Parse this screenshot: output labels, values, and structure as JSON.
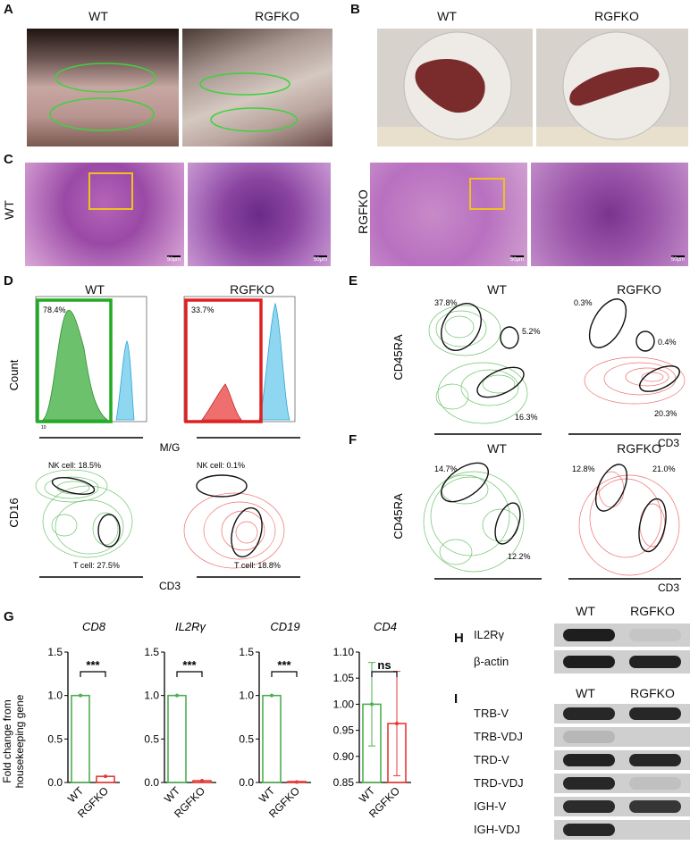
{
  "panel_labels": {
    "a": "A",
    "b": "B",
    "c": "C",
    "d": "D",
    "e": "E",
    "f": "F",
    "g": "G",
    "h": "H",
    "i": "I"
  },
  "groups": {
    "wt": "WT",
    "ko": "RGFKO"
  },
  "scale_bar": "50μm",
  "panel_d": {
    "hist_wt_pct": "78.4%",
    "hist_ko_pct": "33.7%",
    "count_label": "Count",
    "mg_label": "M/G",
    "cd16_label": "CD16",
    "cd3_label": "CD3",
    "wt_nk": "NK cell: 18.5%",
    "wt_t": "T cell: 27.5%",
    "ko_nk": "NK cell: 0.1%",
    "ko_t": "T cell: 18.8%",
    "colors": {
      "wt": "#4caf50",
      "ko": "#e53935",
      "other": "#29b6f6"
    }
  },
  "panel_e": {
    "ylabel": "CD45RA",
    "xlabel": "CD3",
    "wt": [
      "37.8%",
      "5.2%",
      "16.3%"
    ],
    "ko": [
      "0.3%",
      "0.4%",
      "20.3%"
    ]
  },
  "panel_f": {
    "ylabel": "CD45RA",
    "xlabel": "CD3",
    "wt": [
      "14.7%",
      "12.2%"
    ],
    "ko": [
      "12.8%",
      "21.0%"
    ]
  },
  "panel_g": {
    "ylabel_line1": "Fold change from",
    "ylabel_line2": "housekeeping gene"
  },
  "chart_data": [
    {
      "type": "bar",
      "title": "CD8",
      "categories": [
        "WT",
        "RGFKO"
      ],
      "values": [
        1.0,
        0.07
      ],
      "ylim": [
        0,
        1.5
      ],
      "yticks": [
        "0.0",
        "0.5",
        "1.0",
        "1.5"
      ],
      "significance": "***"
    },
    {
      "type": "bar",
      "title": "IL2Rγ",
      "categories": [
        "WT",
        "RGFKO"
      ],
      "values": [
        1.0,
        0.02
      ],
      "ylim": [
        0,
        1.5
      ],
      "yticks": [
        "0.0",
        "0.5",
        "1.0",
        "1.5"
      ],
      "significance": "***"
    },
    {
      "type": "bar",
      "title": "CD19",
      "categories": [
        "WT",
        "RGFKO"
      ],
      "values": [
        1.0,
        0.005
      ],
      "ylim": [
        0,
        1.5
      ],
      "yticks": [
        "0.0",
        "0.5",
        "1.0",
        "1.5"
      ],
      "significance": "***"
    },
    {
      "type": "bar",
      "title": "CD4",
      "categories": [
        "WT",
        "RGFKO"
      ],
      "values": [
        1.0,
        0.963
      ],
      "errors": [
        0.08,
        0.1
      ],
      "ylim": [
        0.85,
        1.1
      ],
      "yticks": [
        "0.85",
        "0.90",
        "0.95",
        "1.00",
        "1.05",
        "1.10"
      ],
      "significance": "ns"
    }
  ],
  "panel_h": {
    "rows": [
      "IL2Rγ",
      "β-actin"
    ]
  },
  "panel_i": {
    "rows": [
      "TRB-V",
      "TRB-VDJ",
      "TRD-V",
      "TRD-VDJ",
      "IGH-V",
      "IGH-VDJ"
    ]
  }
}
